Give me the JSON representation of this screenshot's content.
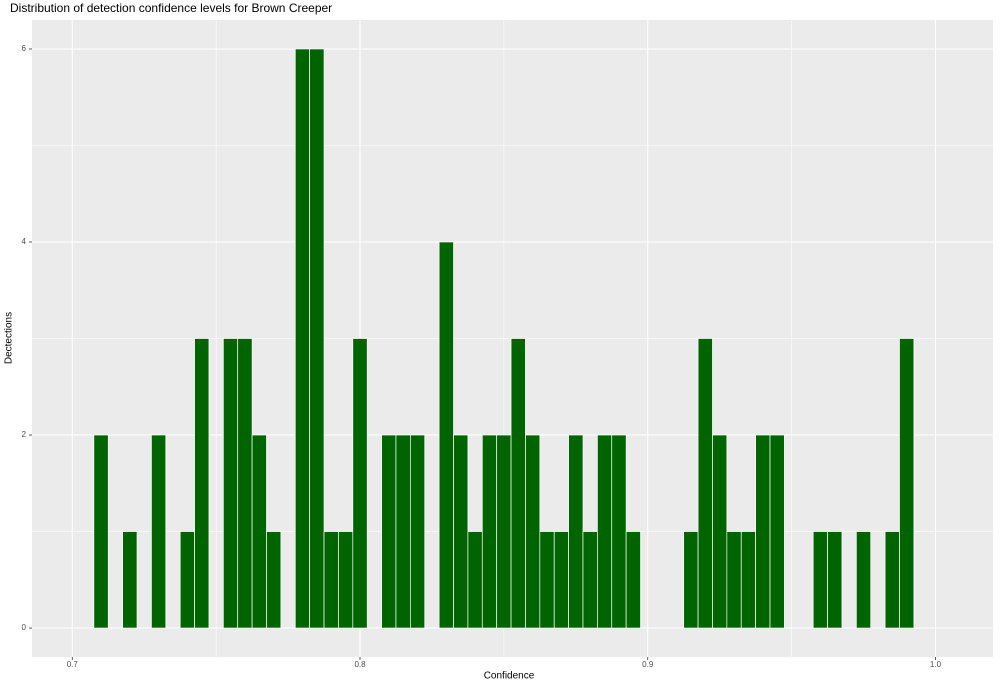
{
  "chart_data": {
    "type": "histogram",
    "title": "Distribution of detection confidence levels for Brown Creeper",
    "x_label": "Confidence",
    "y_label": "Dectections",
    "bins": [
      0.7075,
      0.7125,
      0.7175,
      0.7225,
      0.7275,
      0.7325,
      0.7375,
      0.7425,
      0.7475,
      0.7525,
      0.7575,
      0.7625,
      0.7675,
      0.7725,
      0.7775,
      0.7825,
      0.7875,
      0.7925,
      0.7975,
      0.8025,
      0.8075,
      0.8125,
      0.8175,
      0.8225,
      0.8275,
      0.8325,
      0.8375,
      0.8425,
      0.8475,
      0.8525,
      0.8575,
      0.8625,
      0.8675,
      0.8725,
      0.8775,
      0.8825,
      0.8875,
      0.8925,
      0.8975,
      0.9025,
      0.9075,
      0.9125,
      0.9175,
      0.9225,
      0.9275,
      0.9325,
      0.9375,
      0.9425,
      0.9475,
      0.9525,
      0.9575,
      0.9625,
      0.9675,
      0.9725,
      0.9775,
      0.9825,
      0.9875,
      0.9925
    ],
    "values": [
      2,
      0,
      1,
      0,
      2,
      0,
      1,
      3,
      0,
      3,
      3,
      2,
      1,
      0,
      6,
      6,
      1,
      1,
      3,
      0,
      2,
      2,
      2,
      0,
      4,
      2,
      1,
      2,
      2,
      3,
      2,
      1,
      1,
      2,
      1,
      2,
      2,
      1,
      0,
      0,
      0,
      1,
      3,
      2,
      1,
      1,
      2,
      2,
      0,
      0,
      1,
      1,
      0,
      1,
      0,
      1,
      3
    ],
    "color": "#006400",
    "xlim": [
      0.686,
      1.02
    ],
    "xticks": [
      0.7,
      0.8,
      0.9,
      {
        "value": 1,
        "label": "1.0"
      }
    ],
    "ylim": [
      -0.3,
      6.3
    ],
    "yticks": [
      0,
      2,
      4,
      6
    ],
    "grid": true
  }
}
